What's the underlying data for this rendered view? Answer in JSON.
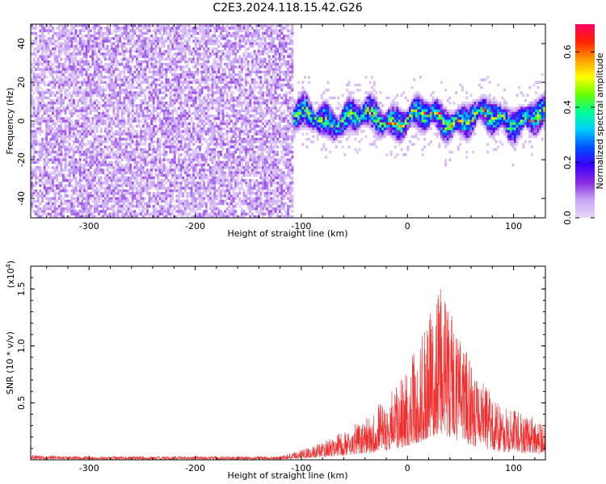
{
  "title": "C2E3.2024.118.15.42.G26",
  "chart_data": [
    {
      "type": "heatmap",
      "xlabel": "Height of straight line (km)",
      "ylabel": "Frequency (Hz)",
      "xlim": [
        -355,
        130
      ],
      "ylim": [
        -50,
        50
      ],
      "xticks": [
        -300,
        -200,
        -100,
        0,
        100
      ],
      "yticks": [
        -40,
        -20,
        0,
        20,
        40
      ],
      "colorbar": {
        "label": "Normalized spectral amplitude",
        "range": [
          0,
          0.7
        ],
        "ticks": [
          "0.0",
          "0.2",
          "0.4",
          "0.6"
        ],
        "colormap": [
          "#e8d8f8",
          "#c9a8f5",
          "#8a2be2",
          "#3a00ff",
          "#0050ff",
          "#00ccff",
          "#00ff99",
          "#66ff00",
          "#ffff00",
          "#ff9900",
          "#ff2200",
          "#ff0066"
        ]
      },
      "regions": [
        {
          "x_range": [
            -355,
            -108
          ],
          "freq_range": [
            -50,
            50
          ],
          "amplitude": 0.05
        },
        {
          "x_range": [
            -108,
            130
          ],
          "freq_center": 2,
          "freq_halfwidth": 8,
          "amplitude": 0.35,
          "peak_amplitude": 0.6
        }
      ]
    },
    {
      "type": "line",
      "xlabel": "Height of straight line (km)",
      "ylabel": "SNR (10 * v/v)",
      "yscale_label": "(x10",
      "yscale_exp": "4",
      "yscale_close": ")",
      "xlim": [
        -355,
        130
      ],
      "ylim": [
        0,
        1.7
      ],
      "xticks": [
        -300,
        -200,
        -100,
        0,
        100
      ],
      "yticks": [
        "0.5",
        "1.0",
        "1.5"
      ],
      "color": "#f03030",
      "envelope": {
        "x": [
          -355,
          -300,
          -200,
          -120,
          -100,
          -80,
          -60,
          -40,
          -20,
          -10,
          0,
          10,
          20,
          30,
          40,
          50,
          60,
          70,
          80,
          90,
          100,
          110,
          120,
          130
        ],
        "y": [
          0.04,
          0.03,
          0.03,
          0.03,
          0.09,
          0.15,
          0.25,
          0.35,
          0.55,
          0.65,
          0.8,
          1.0,
          1.25,
          1.55,
          1.3,
          1.05,
          0.85,
          0.7,
          0.55,
          0.45,
          0.45,
          0.4,
          0.35,
          0.3
        ]
      }
    }
  ]
}
